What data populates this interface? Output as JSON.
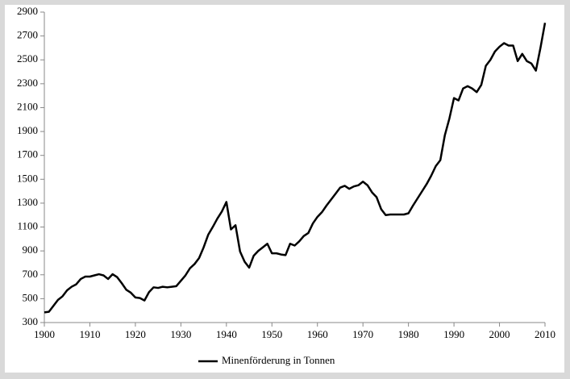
{
  "chart_data": {
    "type": "line",
    "x": [
      1900,
      1901,
      1902,
      1903,
      1904,
      1905,
      1906,
      1907,
      1908,
      1909,
      1910,
      1911,
      1912,
      1913,
      1914,
      1915,
      1916,
      1917,
      1918,
      1919,
      1920,
      1921,
      1922,
      1923,
      1924,
      1925,
      1926,
      1927,
      1928,
      1929,
      1930,
      1931,
      1932,
      1933,
      1934,
      1935,
      1936,
      1937,
      1938,
      1939,
      1940,
      1941,
      1942,
      1943,
      1944,
      1945,
      1946,
      1947,
      1948,
      1949,
      1950,
      1951,
      1952,
      1953,
      1954,
      1955,
      1956,
      1957,
      1958,
      1959,
      1960,
      1961,
      1962,
      1963,
      1964,
      1965,
      1966,
      1967,
      1968,
      1969,
      1970,
      1971,
      1972,
      1973,
      1974,
      1975,
      1976,
      1977,
      1978,
      1979,
      1980,
      1981,
      1982,
      1983,
      1984,
      1985,
      1986,
      1987,
      1988,
      1989,
      1990,
      1991,
      1992,
      1993,
      1994,
      1995,
      1996,
      1997,
      1998,
      1999,
      2000,
      2001,
      2002,
      2003,
      2004,
      2005,
      2006,
      2007,
      2008,
      2009,
      2010
    ],
    "series": [
      {
        "name": "Minenförderung in Tonnen",
        "color": "#000000",
        "values": [
          385,
          390,
          440,
          490,
          520,
          570,
          600,
          620,
          665,
          685,
          685,
          695,
          705,
          695,
          665,
          705,
          680,
          630,
          575,
          550,
          510,
          505,
          485,
          555,
          595,
          590,
          600,
          595,
          600,
          605,
          650,
          695,
          755,
          790,
          840,
          930,
          1035,
          1100,
          1170,
          1230,
          1310,
          1080,
          1115,
          895,
          810,
          760,
          860,
          900,
          930,
          960,
          880,
          880,
          870,
          865,
          960,
          945,
          980,
          1025,
          1050,
          1130,
          1185,
          1225,
          1280,
          1330,
          1380,
          1430,
          1445,
          1420,
          1440,
          1450,
          1480,
          1450,
          1390,
          1350,
          1250,
          1200,
          1205,
          1205,
          1205,
          1205,
          1215,
          1280,
          1340,
          1400,
          1460,
          1530,
          1610,
          1660,
          1870,
          2010,
          2180,
          2160,
          2260,
          2280,
          2260,
          2230,
          2290,
          2450,
          2500,
          2570,
          2610,
          2640,
          2620,
          2620,
          2490,
          2550,
          2490,
          2470,
          2410,
          2600,
          2810
        ]
      }
    ],
    "xlim": [
      1900,
      2010
    ],
    "xticks": [
      1900,
      1910,
      1920,
      1930,
      1940,
      1950,
      1960,
      1970,
      1980,
      1990,
      2000,
      2010
    ],
    "ylim": [
      300,
      2900
    ],
    "yticks": [
      300,
      500,
      700,
      900,
      1100,
      1300,
      1500,
      1700,
      1900,
      2100,
      2300,
      2500,
      2700,
      2900
    ],
    "grid": false,
    "legend": "bottom"
  }
}
